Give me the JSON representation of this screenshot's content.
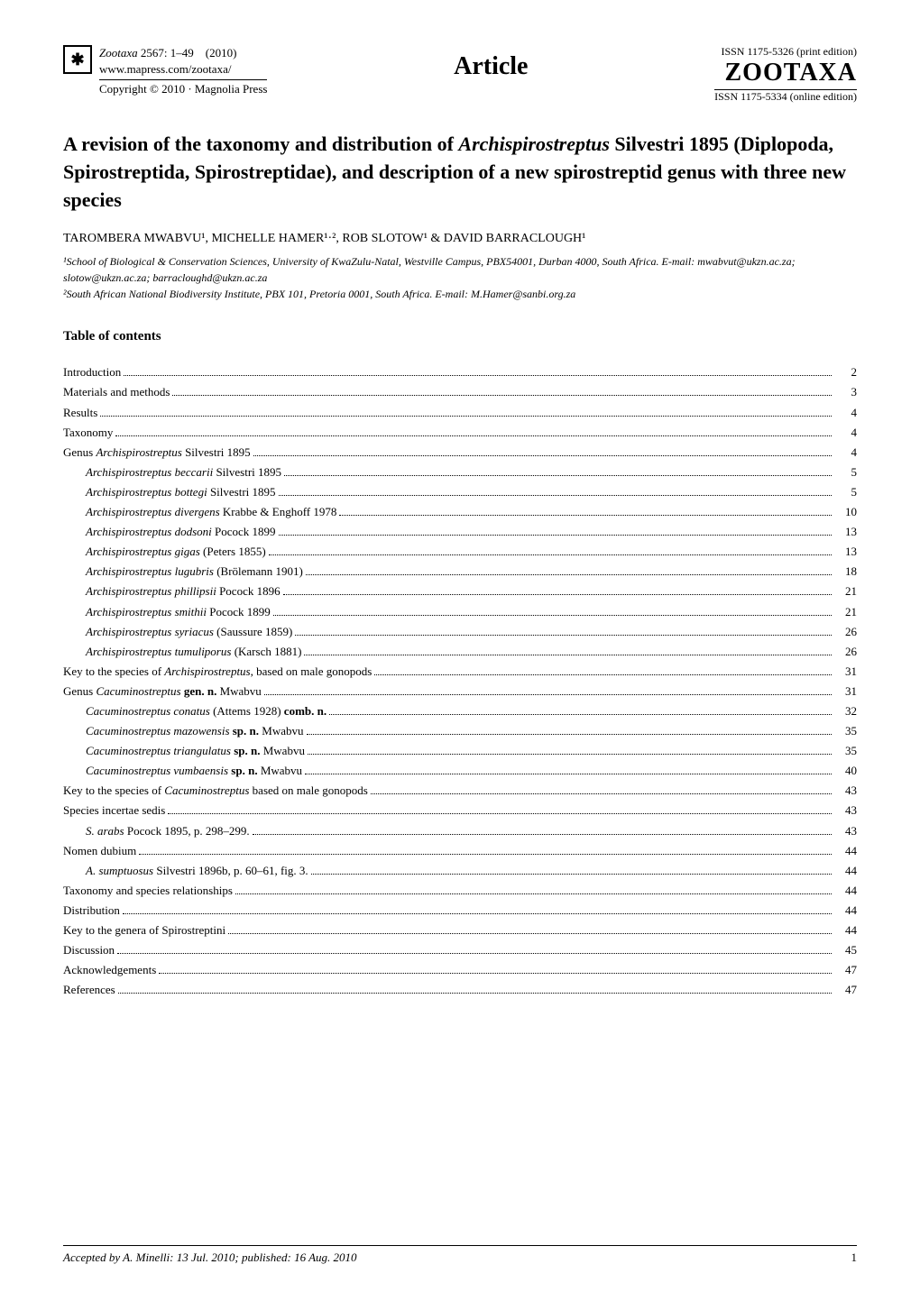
{
  "header": {
    "journal": "Zootaxa",
    "issue": "2567: 1–49",
    "year": "(2010)",
    "url": "www.mapress.com/zootaxa/",
    "copyright": "Copyright © 2010  ·  Magnolia Press",
    "center": "Article",
    "issn_print": "ISSN 1175-5326  (print edition)",
    "logo": "ZOOTAXA",
    "issn_online": "ISSN 1175-5334 (online edition)"
  },
  "title_parts": {
    "p1": "A revision of the taxonomy and distribution of ",
    "genus1": "Archispirostreptus",
    "p2": " Silvestri 1895 (Diplopoda, Spirostreptida, Spirostreptidae), and description of a new spirostreptid genus with three new species"
  },
  "authors": "TAROMBERA MWABVU¹, MICHELLE HAMER¹·², ROB SLOTOW¹ & DAVID BARRACLOUGH¹",
  "affil1": "¹School of Biological & Conservation Sciences, University of KwaZulu-Natal, Westville Campus, PBX54001, Durban 4000, South Africa. E-mail: mwabvut@ukzn.ac.za; slotow@ukzn.ac.za; barracloughd@ukzn.ac.za",
  "affil2": "²South African National Biodiversity Institute, PBX 101, Pretoria 0001, South Africa. E-mail: M.Hamer@sanbi.org.za",
  "toc_heading": "Table of contents",
  "toc": [
    {
      "label": "Introduction ",
      "page": "2",
      "indent": 0,
      "italic": false
    },
    {
      "label": "Materials and methods ",
      "page": "3",
      "indent": 0,
      "italic": false
    },
    {
      "label": "Results ",
      "page": "4",
      "indent": 0,
      "italic": false
    },
    {
      "label": "Taxonomy",
      "page": " 4",
      "indent": 0,
      "italic": false
    },
    {
      "label": "Genus <i>Archispirostreptus</i> Silvestri 1895 ",
      "page": "4",
      "indent": 0,
      "italic": false
    },
    {
      "label": "<i>Archispirostreptus beccarii</i> Silvestri 1895 ",
      "page": "5",
      "indent": 1,
      "italic": false
    },
    {
      "label": "<i>Archispirostreptus bottegi</i> Silvestri 1895",
      "page": " 5",
      "indent": 1,
      "italic": false
    },
    {
      "label": "<i>Archispirostreptus divergens</i> Krabbe & Enghoff 1978 ",
      "page": "10",
      "indent": 1,
      "italic": false
    },
    {
      "label": "<i>Archispirostreptus dodsoni</i> Pocock 1899 ",
      "page": "13",
      "indent": 1,
      "italic": false
    },
    {
      "label": "<i>Archispirostreptus gigas</i> (Peters 1855) ",
      "page": "13",
      "indent": 1,
      "italic": false
    },
    {
      "label": "<i>Archispirostreptus lugubris</i> (Brölemann 1901) ",
      "page": "18",
      "indent": 1,
      "italic": false
    },
    {
      "label": "<i>Archispirostreptus phillipsii</i> Pocock 1896 ",
      "page": "21",
      "indent": 1,
      "italic": false
    },
    {
      "label": "<i>Archispirostreptus smithii</i> Pocock 1899 ",
      "page": "21",
      "indent": 1,
      "italic": false
    },
    {
      "label": "<i>Archispirostreptus syriacus</i> (Saussure 1859)",
      "page": " 26",
      "indent": 1,
      "italic": false
    },
    {
      "label": "<i>Archispirostreptus tumuliporus</i> (Karsch 1881) ",
      "page": "26",
      "indent": 1,
      "italic": false
    },
    {
      "label": "Key to the species of <i>Archispirostreptus</i>, based on male gonopods ",
      "page": "31",
      "indent": 0,
      "italic": false
    },
    {
      "label": "Genus <i>Cacuminostreptus</i> <b>gen. n.</b> Mwabvu ",
      "page": "31",
      "indent": 0,
      "italic": false
    },
    {
      "label": "<i>Cacuminostreptus conatus</i> (Attems 1928) <b>comb. n.</b> ",
      "page": "32",
      "indent": 1,
      "italic": false
    },
    {
      "label": "<i>Cacuminostreptus mazowensis</i> <b>sp. n.</b> Mwabvu ",
      "page": "35",
      "indent": 1,
      "italic": false
    },
    {
      "label": "<i>Cacuminostreptus triangulatus</i> <b>sp. n.</b> Mwabvu",
      "page": " 35",
      "indent": 1,
      "italic": false
    },
    {
      "label": "<i>Cacuminostreptus vumbaensis</i> <b>sp. n.</b> Mwabvu ",
      "page": "40",
      "indent": 1,
      "italic": false
    },
    {
      "label": "Key to the species of <i>Cacuminostreptus</i> based on male gonopods ",
      "page": "43",
      "indent": 0,
      "italic": false
    },
    {
      "label": "Species incertae sedis",
      "page": " 43",
      "indent": 0,
      "italic": false
    },
    {
      "label": "<i>S. arabs</i> Pocock 1895, p. 298–299. ",
      "page": "43",
      "indent": 1,
      "italic": false
    },
    {
      "label": "Nomen dubium ",
      "page": "44",
      "indent": 0,
      "italic": false
    },
    {
      "label": "<i>A. sumptuosus</i> Silvestri 1896b, p. 60–61, fig. 3. ",
      "page": "44",
      "indent": 1,
      "italic": false
    },
    {
      "label": "Taxonomy and species relationships ",
      "page": "44",
      "indent": 0,
      "italic": false
    },
    {
      "label": "Distribution ",
      "page": "44",
      "indent": 0,
      "italic": false
    },
    {
      "label": "Key to the genera of Spirostreptini ",
      "page": "44",
      "indent": 0,
      "italic": false
    },
    {
      "label": "Discussion ",
      "page": "45",
      "indent": 0,
      "italic": false
    },
    {
      "label": "Acknowledgements ",
      "page": "47",
      "indent": 0,
      "italic": false
    },
    {
      "label": "References ",
      "page": " 47",
      "indent": 0,
      "italic": false
    }
  ],
  "footer": {
    "accepted": "Accepted by A. Minelli: 13 Jul. 2010; published: 16 Aug. 2010",
    "page": "1"
  },
  "colors": {
    "text": "#000000",
    "background": "#ffffff"
  }
}
